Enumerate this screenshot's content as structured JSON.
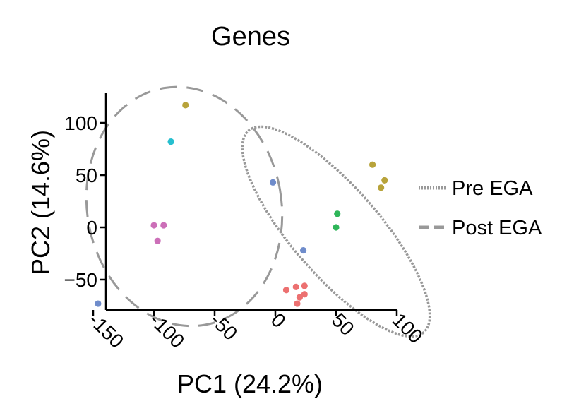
{
  "chart_data": {
    "type": "scatter",
    "title": "Genes",
    "xlabel": "PC1 (24.2%)",
    "ylabel": "PC2 (14.6%)",
    "xlim": [
      -160,
      100
    ],
    "ylim": [
      -80,
      130
    ],
    "x_ticks": [
      -150,
      -100,
      -50,
      0,
      50,
      100
    ],
    "y_ticks": [
      -50,
      0,
      50,
      100
    ],
    "x_tick_labels": [
      "-150",
      "-100",
      "-50",
      "0",
      "50",
      "100"
    ],
    "y_tick_labels": [
      "−50",
      "0",
      "50",
      "100"
    ],
    "grid": false,
    "legend_position": "right",
    "legend": [
      {
        "label": "Pre EGA",
        "style": "dotted"
      },
      {
        "label": "Post EGA",
        "style": "dashed"
      }
    ],
    "points": [
      {
        "x": -74,
        "y": 117,
        "color": "#b8a33a"
      },
      {
        "x": -86,
        "y": 82,
        "color": "#26bfcf"
      },
      {
        "x": -2,
        "y": 43,
        "color": "#6f8ccb"
      },
      {
        "x": -100,
        "y": 2,
        "color": "#cc6fb8"
      },
      {
        "x": -92,
        "y": 2,
        "color": "#cc6fb8"
      },
      {
        "x": -97,
        "y": -13,
        "color": "#cc6fb8"
      },
      {
        "x": -146,
        "y": -73,
        "color": "#6f8ccb"
      },
      {
        "x": 80,
        "y": 60,
        "color": "#b8a33a"
      },
      {
        "x": 90,
        "y": 45,
        "color": "#b8a33a"
      },
      {
        "x": 87,
        "y": 38,
        "color": "#b8a33a"
      },
      {
        "x": 51,
        "y": 13,
        "color": "#2eb659"
      },
      {
        "x": 50,
        "y": 0,
        "color": "#2eb659"
      },
      {
        "x": 23,
        "y": -22,
        "color": "#6f8ccb"
      },
      {
        "x": 9,
        "y": -60,
        "color": "#ec7070"
      },
      {
        "x": 17,
        "y": -57,
        "color": "#ec7070"
      },
      {
        "x": 24,
        "y": -56,
        "color": "#ec7070"
      },
      {
        "x": 20,
        "y": -67,
        "color": "#ec7070"
      },
      {
        "x": 24,
        "y": -64,
        "color": "#ec7070"
      },
      {
        "x": 18,
        "y": -73,
        "color": "#ec7070"
      }
    ],
    "ellipses": [
      {
        "group": "Post EGA",
        "style": "dashed",
        "cx": -75,
        "cy": 20,
        "rx": 80,
        "ry": 115,
        "rotation_deg": -10
      },
      {
        "group": "Pre EGA",
        "style": "dotted",
        "cx": 50,
        "cy": -4,
        "rx": 110,
        "ry": 42,
        "rotation_deg": 49
      }
    ],
    "ellipse_color": "#999999"
  }
}
